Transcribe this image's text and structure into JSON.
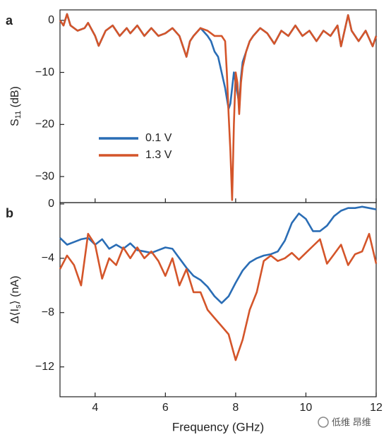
{
  "chart_data": [
    {
      "type": "line",
      "panel_label": "a",
      "ylabel": [
        "S",
        "11",
        " (dB)"
      ],
      "xlim": [
        3,
        12
      ],
      "xticks": [
        4,
        6,
        8,
        10,
        12
      ],
      "ylim": [
        -35,
        2
      ],
      "yticks": [
        0,
        {
          "value": -10,
          "label": "−10"
        },
        {
          "value": -20,
          "label": "−20"
        },
        {
          "value": -30,
          "label": "−30"
        }
      ],
      "x": [
        3.0,
        3.1,
        3.2,
        3.3,
        3.5,
        3.7,
        3.8,
        4.0,
        4.1,
        4.3,
        4.5,
        4.7,
        4.9,
        5.0,
        5.2,
        5.4,
        5.6,
        5.8,
        6.0,
        6.2,
        6.4,
        6.6,
        6.7,
        6.8,
        7.0,
        7.2,
        7.3,
        7.4,
        7.5,
        7.6,
        7.7,
        7.75,
        7.8,
        7.85,
        7.9,
        7.95,
        8.0,
        8.05,
        8.1,
        8.15,
        8.2,
        8.3,
        8.4,
        8.5,
        8.7,
        8.9,
        9.1,
        9.3,
        9.5,
        9.7,
        9.9,
        10.1,
        10.3,
        10.5,
        10.7,
        10.9,
        11.0,
        11.1,
        11.2,
        11.3,
        11.5,
        11.7,
        11.9,
        12.0
      ],
      "series": [
        {
          "name": "0.1 V",
          "color": "#2a6db5",
          "values": [
            0,
            -1,
            1.2,
            -1,
            -2,
            -1.5,
            -0.5,
            -3,
            -4.9,
            -2,
            -1,
            -3,
            -1.5,
            -2.5,
            -1,
            -3,
            -1.5,
            -3,
            -2.5,
            -1.5,
            -3,
            -7,
            -4,
            -3,
            -1.5,
            -3,
            -4,
            -6,
            -7,
            -10,
            -13,
            -15,
            -17,
            -16,
            -13,
            -10,
            -12,
            -14,
            -16,
            -11,
            -8,
            -6,
            -4,
            -3,
            -1.5,
            -2.5,
            -4.5,
            -2,
            -3,
            -1,
            -3,
            -2,
            -4,
            -2,
            -3,
            -1,
            -5,
            -2,
            1,
            -2,
            -4,
            -2,
            -5,
            -3
          ]
        },
        {
          "name": "1.3 V",
          "color": "#d4552a",
          "values": [
            0,
            -1,
            1.2,
            -1,
            -2,
            -1.5,
            -0.5,
            -3,
            -4.9,
            -2,
            -1,
            -3,
            -1.5,
            -2.5,
            -1,
            -3,
            -1.5,
            -3,
            -2.5,
            -1.5,
            -3,
            -7,
            -4,
            -3,
            -1.5,
            -2,
            -2.5,
            -3,
            -3,
            -3,
            -4,
            -10,
            -18,
            -25,
            -34.5,
            -20,
            -10,
            -12,
            -18,
            -12,
            -9,
            -6,
            -4,
            -3,
            -1.5,
            -2.5,
            -4.5,
            -2,
            -3,
            -1,
            -3,
            -2,
            -4,
            -2,
            -3,
            -1,
            -5,
            -2,
            1,
            -2,
            -4,
            -2,
            -5,
            -3
          ]
        }
      ]
    },
    {
      "type": "line",
      "panel_label": "b",
      "ylabel": [
        "Δ⟨I",
        "s",
        "⟩ (nA)"
      ],
      "xlabel": "Frequency (GHz)",
      "xlim": [
        3,
        12
      ],
      "xticks": [
        4,
        6,
        8,
        10,
        12
      ],
      "ylim": [
        -14.2,
        0.1
      ],
      "yticks": [
        0,
        {
          "value": -4,
          "label": "−4"
        },
        {
          "value": -8,
          "label": "−8"
        },
        {
          "value": -12,
          "label": "−12"
        }
      ],
      "x": [
        3.0,
        3.2,
        3.4,
        3.6,
        3.8,
        4.0,
        4.2,
        4.4,
        4.6,
        4.8,
        5.0,
        5.2,
        5.4,
        5.6,
        5.8,
        6.0,
        6.2,
        6.4,
        6.6,
        6.8,
        7.0,
        7.2,
        7.4,
        7.6,
        7.8,
        8.0,
        8.2,
        8.4,
        8.6,
        8.8,
        9.0,
        9.2,
        9.4,
        9.6,
        9.8,
        10.0,
        10.2,
        10.4,
        10.6,
        10.8,
        11.0,
        11.2,
        11.4,
        11.6,
        11.8,
        12.0
      ],
      "series": [
        {
          "name": "0.1 V",
          "color": "#2a6db5",
          "values": [
            -2.5,
            -3.0,
            -2.8,
            -2.6,
            -2.5,
            -3.0,
            -2.6,
            -3.3,
            -3.0,
            -3.3,
            -2.9,
            -3.4,
            -3.5,
            -3.6,
            -3.4,
            -3.2,
            -3.3,
            -4.0,
            -4.7,
            -5.3,
            -5.6,
            -6.1,
            -6.8,
            -7.3,
            -6.8,
            -5.8,
            -4.9,
            -4.3,
            -4.0,
            -3.8,
            -3.7,
            -3.5,
            -2.7,
            -1.4,
            -0.7,
            -1.1,
            -2.0,
            -2.0,
            -1.6,
            -0.9,
            -0.5,
            -0.3,
            -0.3,
            -0.2,
            -0.3,
            -0.4
          ]
        },
        {
          "name": "1.3 V",
          "color": "#d4552a",
          "values": [
            -4.8,
            -3.8,
            -4.5,
            -6.0,
            -2.2,
            -3.0,
            -5.5,
            -4.0,
            -4.5,
            -3.2,
            -4.0,
            -3.2,
            -4.0,
            -3.5,
            -4.2,
            -5.3,
            -4.0,
            -6.0,
            -4.8,
            -6.5,
            -6.5,
            -7.8,
            -8.4,
            -9.0,
            -9.6,
            -11.5,
            -10.0,
            -7.8,
            -6.5,
            -4.2,
            -3.8,
            -4.2,
            -4.0,
            -3.6,
            -4.1,
            -3.6,
            -3.1,
            -2.6,
            -4.4,
            -3.7,
            -3.0,
            -4.5,
            -3.7,
            -3.5,
            -2.2,
            -4.4
          ]
        }
      ]
    }
  ],
  "watermark": "低维 昂维"
}
